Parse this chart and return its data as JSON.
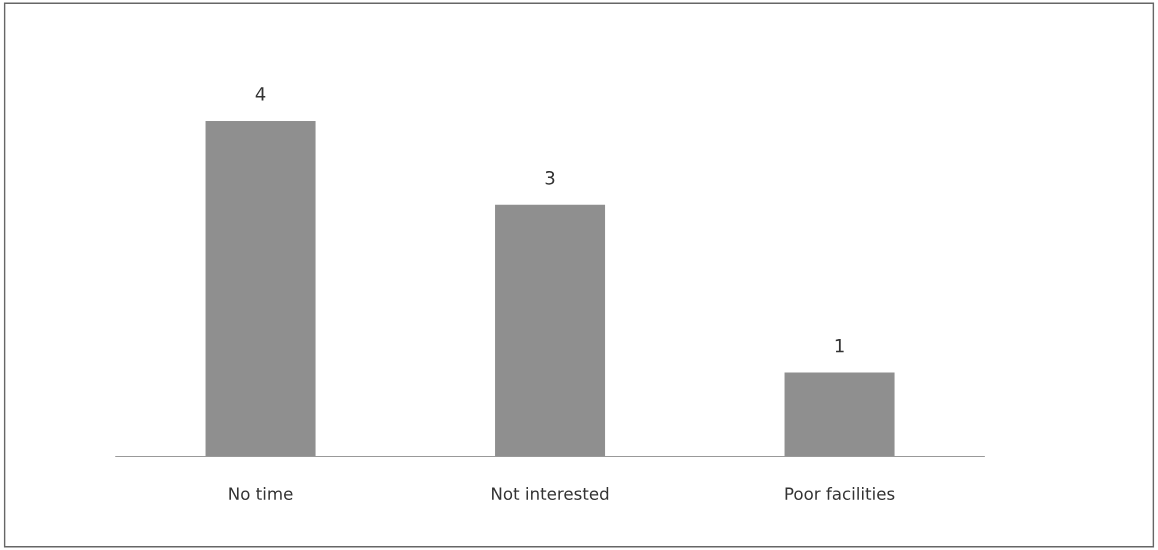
{
  "chart_data": {
    "type": "bar",
    "categories": [
      "No time",
      "Not interested",
      "Poor facilities"
    ],
    "values": [
      4,
      3,
      1
    ],
    "color": "#8f8f8f",
    "data_labels": true,
    "grid": false,
    "legend": false
  }
}
